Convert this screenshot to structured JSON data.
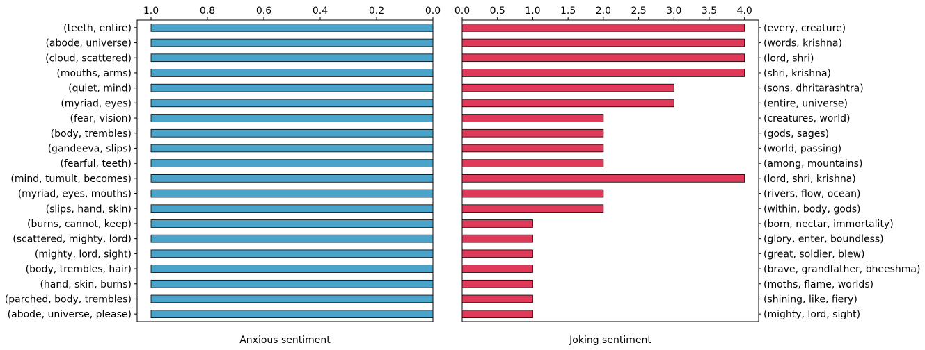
{
  "chart_data": [
    {
      "type": "bar",
      "orientation": "horizontal",
      "x_axis_inverted": true,
      "xlabel": "Anxious sentiment",
      "xlim": [
        0,
        1.0
      ],
      "xticks": [
        "1.0",
        "0.8",
        "0.6",
        "0.4",
        "0.2",
        "0.0"
      ],
      "xtick_values": [
        1.0,
        0.8,
        0.6,
        0.4,
        0.2,
        0.0
      ],
      "xtick_position": "top",
      "category_label_side": "left",
      "bar_color": "#4aa3c8",
      "categories": [
        "(teeth, entire)",
        "(abode, universe)",
        "(cloud, scattered)",
        "(mouths, arms)",
        "(quiet, mind)",
        "(myriad, eyes)",
        "(fear, vision)",
        "(body, trembles)",
        "(gandeeva, slips)",
        "(fearful, teeth)",
        "(mind, tumult, becomes)",
        "(myriad, eyes, mouths)",
        "(slips, hand, skin)",
        "(burns, cannot, keep)",
        "(scattered, mighty, lord)",
        "(mighty, lord, sight)",
        "(body, trembles, hair)",
        "(hand, skin, burns)",
        "(parched, body, trembles)",
        "(abode, universe, please)"
      ],
      "values": [
        1,
        1,
        1,
        1,
        1,
        1,
        1,
        1,
        1,
        1,
        1,
        1,
        1,
        1,
        1,
        1,
        1,
        1,
        1,
        1
      ]
    },
    {
      "type": "bar",
      "orientation": "horizontal",
      "x_axis_inverted": false,
      "xlabel": "Joking sentiment",
      "xlim": [
        0,
        4.2
      ],
      "xticks": [
        "0.0",
        "0.5",
        "1.0",
        "1.5",
        "2.0",
        "2.5",
        "3.0",
        "3.5",
        "4.0"
      ],
      "xtick_values": [
        0,
        0.5,
        1.0,
        1.5,
        2.0,
        2.5,
        3.0,
        3.5,
        4.0
      ],
      "xtick_position": "top",
      "category_label_side": "right",
      "bar_color": "#e03a5a",
      "categories": [
        "(every, creature)",
        "(words, krishna)",
        "(lord, shri)",
        "(shri, krishna)",
        "(sons, dhritarashtra)",
        "(entire, universe)",
        "(creatures, world)",
        "(gods, sages)",
        "(world, passing)",
        "(among, mountains)",
        "(lord, shri, krishna)",
        "(rivers, flow, ocean)",
        "(within, body, gods)",
        "(born, nectar, immortality)",
        "(glory, enter, boundless)",
        "(great, soldier, blew)",
        "(brave, grandfather, bheeshma)",
        "(moths, flame, worlds)",
        "(shining, like, fiery)",
        "(mighty, lord, sight)"
      ],
      "values": [
        4,
        4,
        4,
        4,
        3,
        3,
        2,
        2,
        2,
        2,
        4,
        2,
        2,
        1,
        1,
        1,
        1,
        1,
        1,
        1
      ]
    }
  ]
}
